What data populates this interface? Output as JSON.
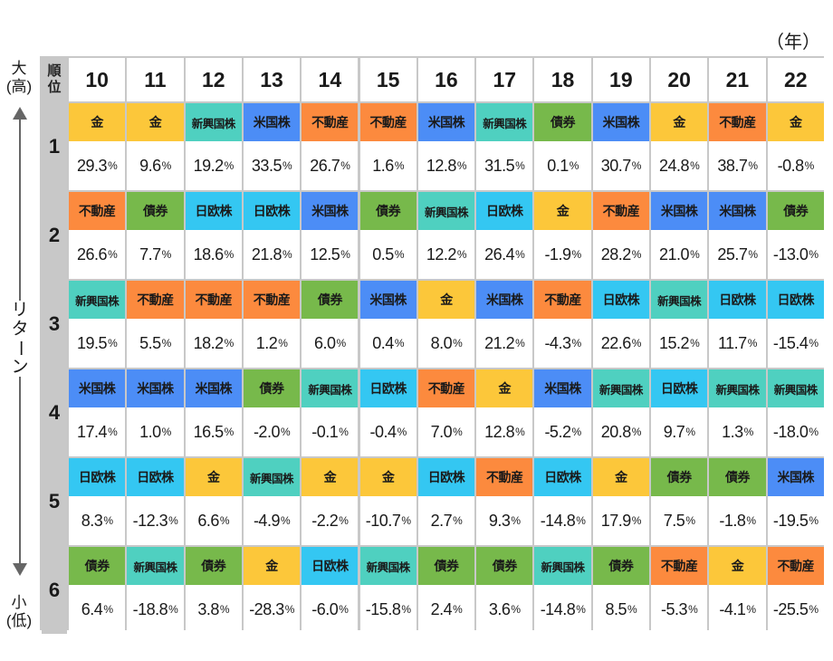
{
  "unit_label": "（年）",
  "corner_label": [
    "順",
    "位"
  ],
  "axis": {
    "top": [
      "大",
      "(高)"
    ],
    "middle": "リターン",
    "bottom": [
      "小",
      "(低)"
    ]
  },
  "colors": {
    "金": "#fcc73a",
    "新興国株": "#4fd0c0",
    "米国株": "#4c8df6",
    "不動産": "#fc8a3e",
    "債券": "#77b94b",
    "日欧株": "#34c7f2"
  },
  "chart_data": {
    "type": "table",
    "years": [
      "10",
      "11",
      "12",
      "13",
      "14",
      "15",
      "16",
      "17",
      "18",
      "19",
      "20",
      "21",
      "22"
    ],
    "ranks": [
      "1",
      "2",
      "3",
      "4",
      "5",
      "6"
    ],
    "rows": [
      [
        {
          "asset": "金",
          "value": "29.3"
        },
        {
          "asset": "金",
          "value": "9.6"
        },
        {
          "asset": "新興国株",
          "value": "19.2"
        },
        {
          "asset": "米国株",
          "value": "33.5"
        },
        {
          "asset": "不動産",
          "value": "26.7"
        },
        {
          "asset": "不動産",
          "value": "1.6"
        },
        {
          "asset": "米国株",
          "value": "12.8"
        },
        {
          "asset": "新興国株",
          "value": "31.5"
        },
        {
          "asset": "債券",
          "value": "0.1"
        },
        {
          "asset": "米国株",
          "value": "30.7"
        },
        {
          "asset": "金",
          "value": "24.8"
        },
        {
          "asset": "不動産",
          "value": "38.7"
        },
        {
          "asset": "金",
          "value": "-0.8"
        }
      ],
      [
        {
          "asset": "不動産",
          "value": "26.6"
        },
        {
          "asset": "債券",
          "value": "7.7"
        },
        {
          "asset": "日欧株",
          "value": "18.6"
        },
        {
          "asset": "日欧株",
          "value": "21.8"
        },
        {
          "asset": "米国株",
          "value": "12.5"
        },
        {
          "asset": "債券",
          "value": "0.5"
        },
        {
          "asset": "新興国株",
          "value": "12.2"
        },
        {
          "asset": "日欧株",
          "value": "26.4"
        },
        {
          "asset": "金",
          "value": "-1.9"
        },
        {
          "asset": "不動産",
          "value": "28.2"
        },
        {
          "asset": "米国株",
          "value": "21.0"
        },
        {
          "asset": "米国株",
          "value": "25.7"
        },
        {
          "asset": "債券",
          "value": "-13.0"
        }
      ],
      [
        {
          "asset": "新興国株",
          "value": "19.5"
        },
        {
          "asset": "不動産",
          "value": "5.5"
        },
        {
          "asset": "不動産",
          "value": "18.2"
        },
        {
          "asset": "不動産",
          "value": "1.2"
        },
        {
          "asset": "債券",
          "value": "6.0"
        },
        {
          "asset": "米国株",
          "value": "0.4"
        },
        {
          "asset": "金",
          "value": "8.0"
        },
        {
          "asset": "米国株",
          "value": "21.2"
        },
        {
          "asset": "不動産",
          "value": "-4.3"
        },
        {
          "asset": "日欧株",
          "value": "22.6"
        },
        {
          "asset": "新興国株",
          "value": "15.2"
        },
        {
          "asset": "日欧株",
          "value": "11.7"
        },
        {
          "asset": "日欧株",
          "value": "-15.4"
        }
      ],
      [
        {
          "asset": "米国株",
          "value": "17.4"
        },
        {
          "asset": "米国株",
          "value": "1.0"
        },
        {
          "asset": "米国株",
          "value": "16.5"
        },
        {
          "asset": "債券",
          "value": "-2.0"
        },
        {
          "asset": "新興国株",
          "value": "-0.1"
        },
        {
          "asset": "日欧株",
          "value": "-0.4"
        },
        {
          "asset": "不動産",
          "value": "7.0"
        },
        {
          "asset": "金",
          "value": "12.8"
        },
        {
          "asset": "米国株",
          "value": "-5.2"
        },
        {
          "asset": "新興国株",
          "value": "20.8"
        },
        {
          "asset": "日欧株",
          "value": "9.7"
        },
        {
          "asset": "新興国株",
          "value": "1.3"
        },
        {
          "asset": "新興国株",
          "value": "-18.0"
        }
      ],
      [
        {
          "asset": "日欧株",
          "value": "8.3"
        },
        {
          "asset": "日欧株",
          "value": "-12.3"
        },
        {
          "asset": "金",
          "value": "6.6"
        },
        {
          "asset": "新興国株",
          "value": "-4.9"
        },
        {
          "asset": "金",
          "value": "-2.2"
        },
        {
          "asset": "金",
          "value": "-10.7"
        },
        {
          "asset": "日欧株",
          "value": "2.7"
        },
        {
          "asset": "不動産",
          "value": "9.3"
        },
        {
          "asset": "日欧株",
          "value": "-14.8"
        },
        {
          "asset": "金",
          "value": "17.9"
        },
        {
          "asset": "債券",
          "value": "7.5"
        },
        {
          "asset": "債券",
          "value": "-1.8"
        },
        {
          "asset": "米国株",
          "value": "-19.5"
        }
      ],
      [
        {
          "asset": "債券",
          "value": "6.4"
        },
        {
          "asset": "新興国株",
          "value": "-18.8"
        },
        {
          "asset": "債券",
          "value": "3.8"
        },
        {
          "asset": "金",
          "value": "-28.3"
        },
        {
          "asset": "日欧株",
          "value": "-6.0"
        },
        {
          "asset": "新興国株",
          "value": "-15.8"
        },
        {
          "asset": "債券",
          "value": "2.4"
        },
        {
          "asset": "債券",
          "value": "3.6"
        },
        {
          "asset": "新興国株",
          "value": "-14.8"
        },
        {
          "asset": "債券",
          "value": "8.5"
        },
        {
          "asset": "不動産",
          "value": "-5.3"
        },
        {
          "asset": "金",
          "value": "-4.1"
        },
        {
          "asset": "不動産",
          "value": "-25.5"
        }
      ]
    ],
    "value_unit": "%"
  }
}
